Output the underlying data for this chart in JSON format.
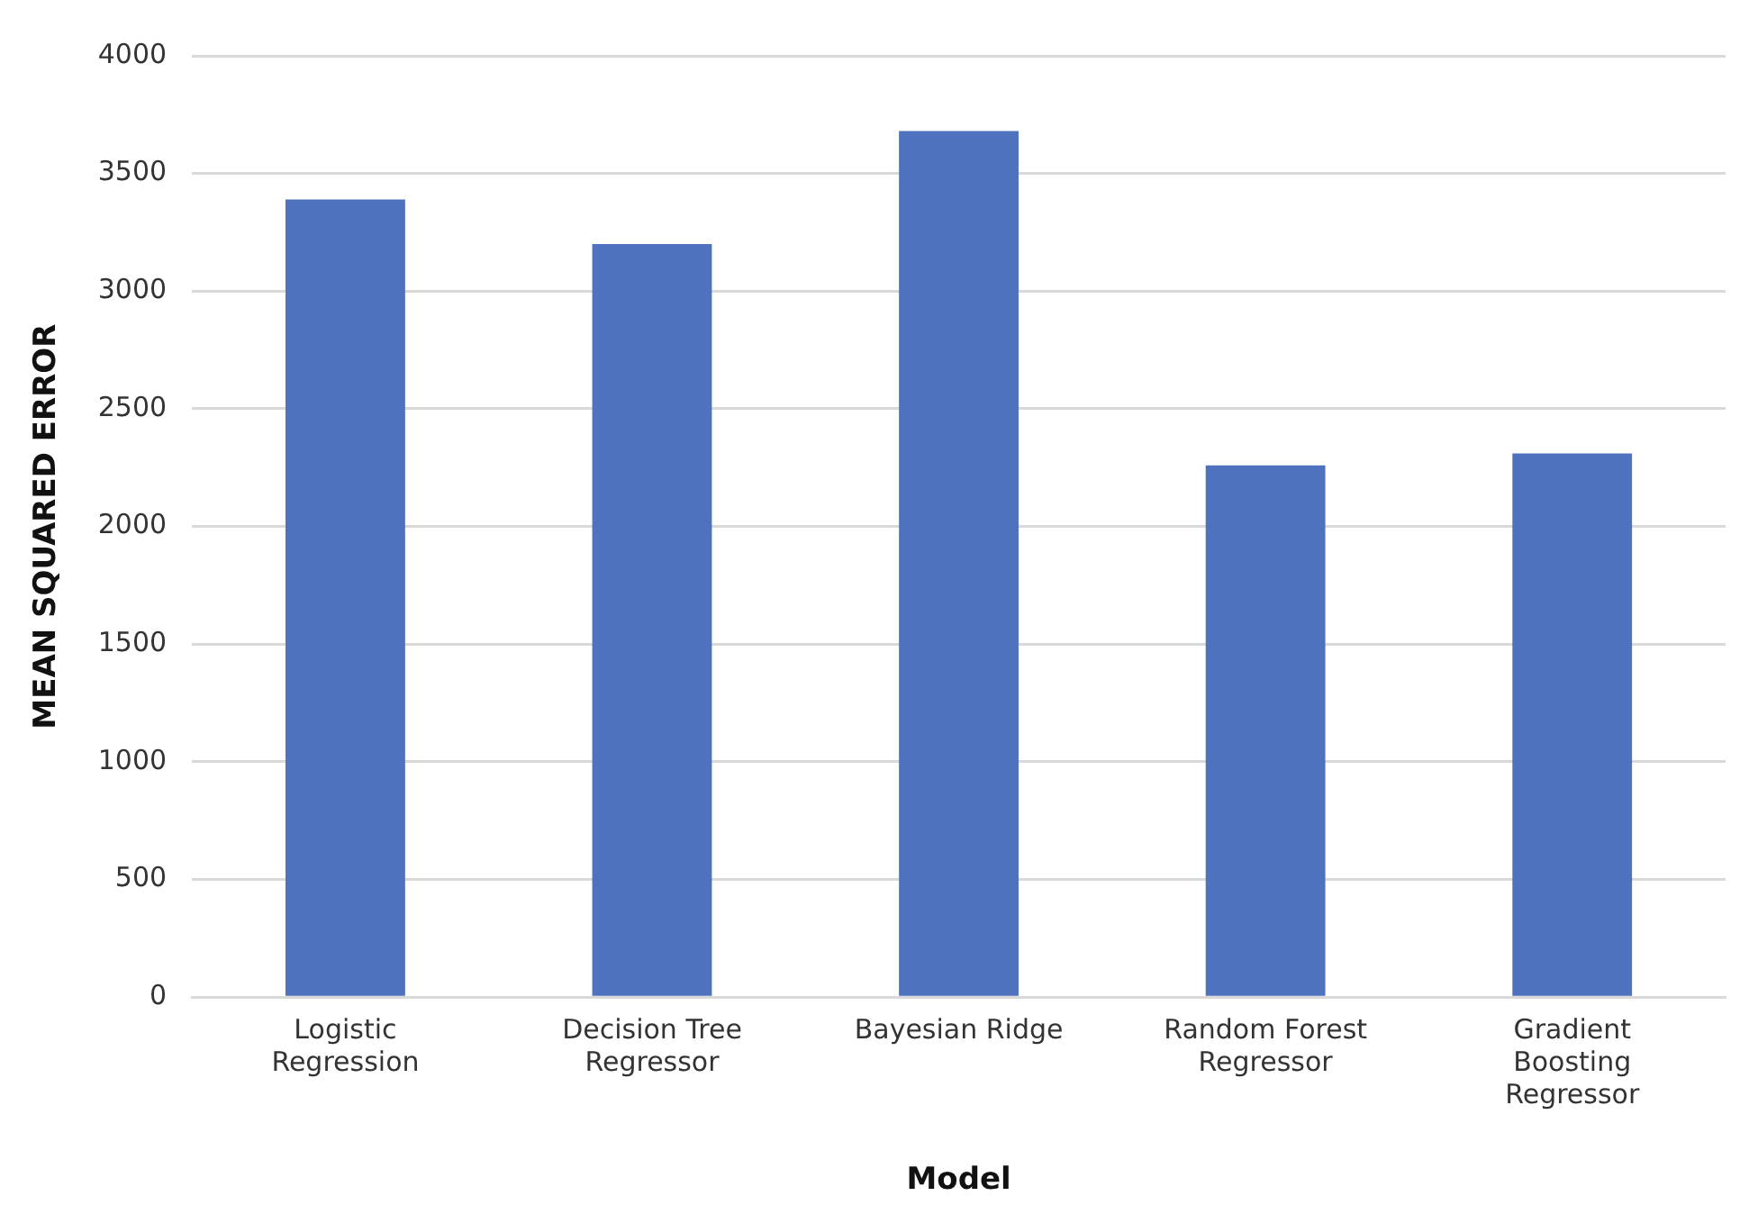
{
  "chart_data": {
    "type": "bar",
    "xlabel": "Model",
    "ylabel": "MEAN SQUARED ERROR",
    "categories": [
      "Logistic Regression",
      "Decision Tree Regressor",
      "Bayesian Ridge",
      "Random Forest Regressor",
      "Gradient Boosting Regressor"
    ],
    "values": [
      3390,
      3200,
      3680,
      2260,
      2310
    ],
    "color": "#4f72be",
    "ylim": [
      0,
      4000
    ],
    "yticks": [
      0,
      500,
      1000,
      1500,
      2000,
      2500,
      3000,
      3500,
      4000
    ],
    "grid": "y"
  }
}
